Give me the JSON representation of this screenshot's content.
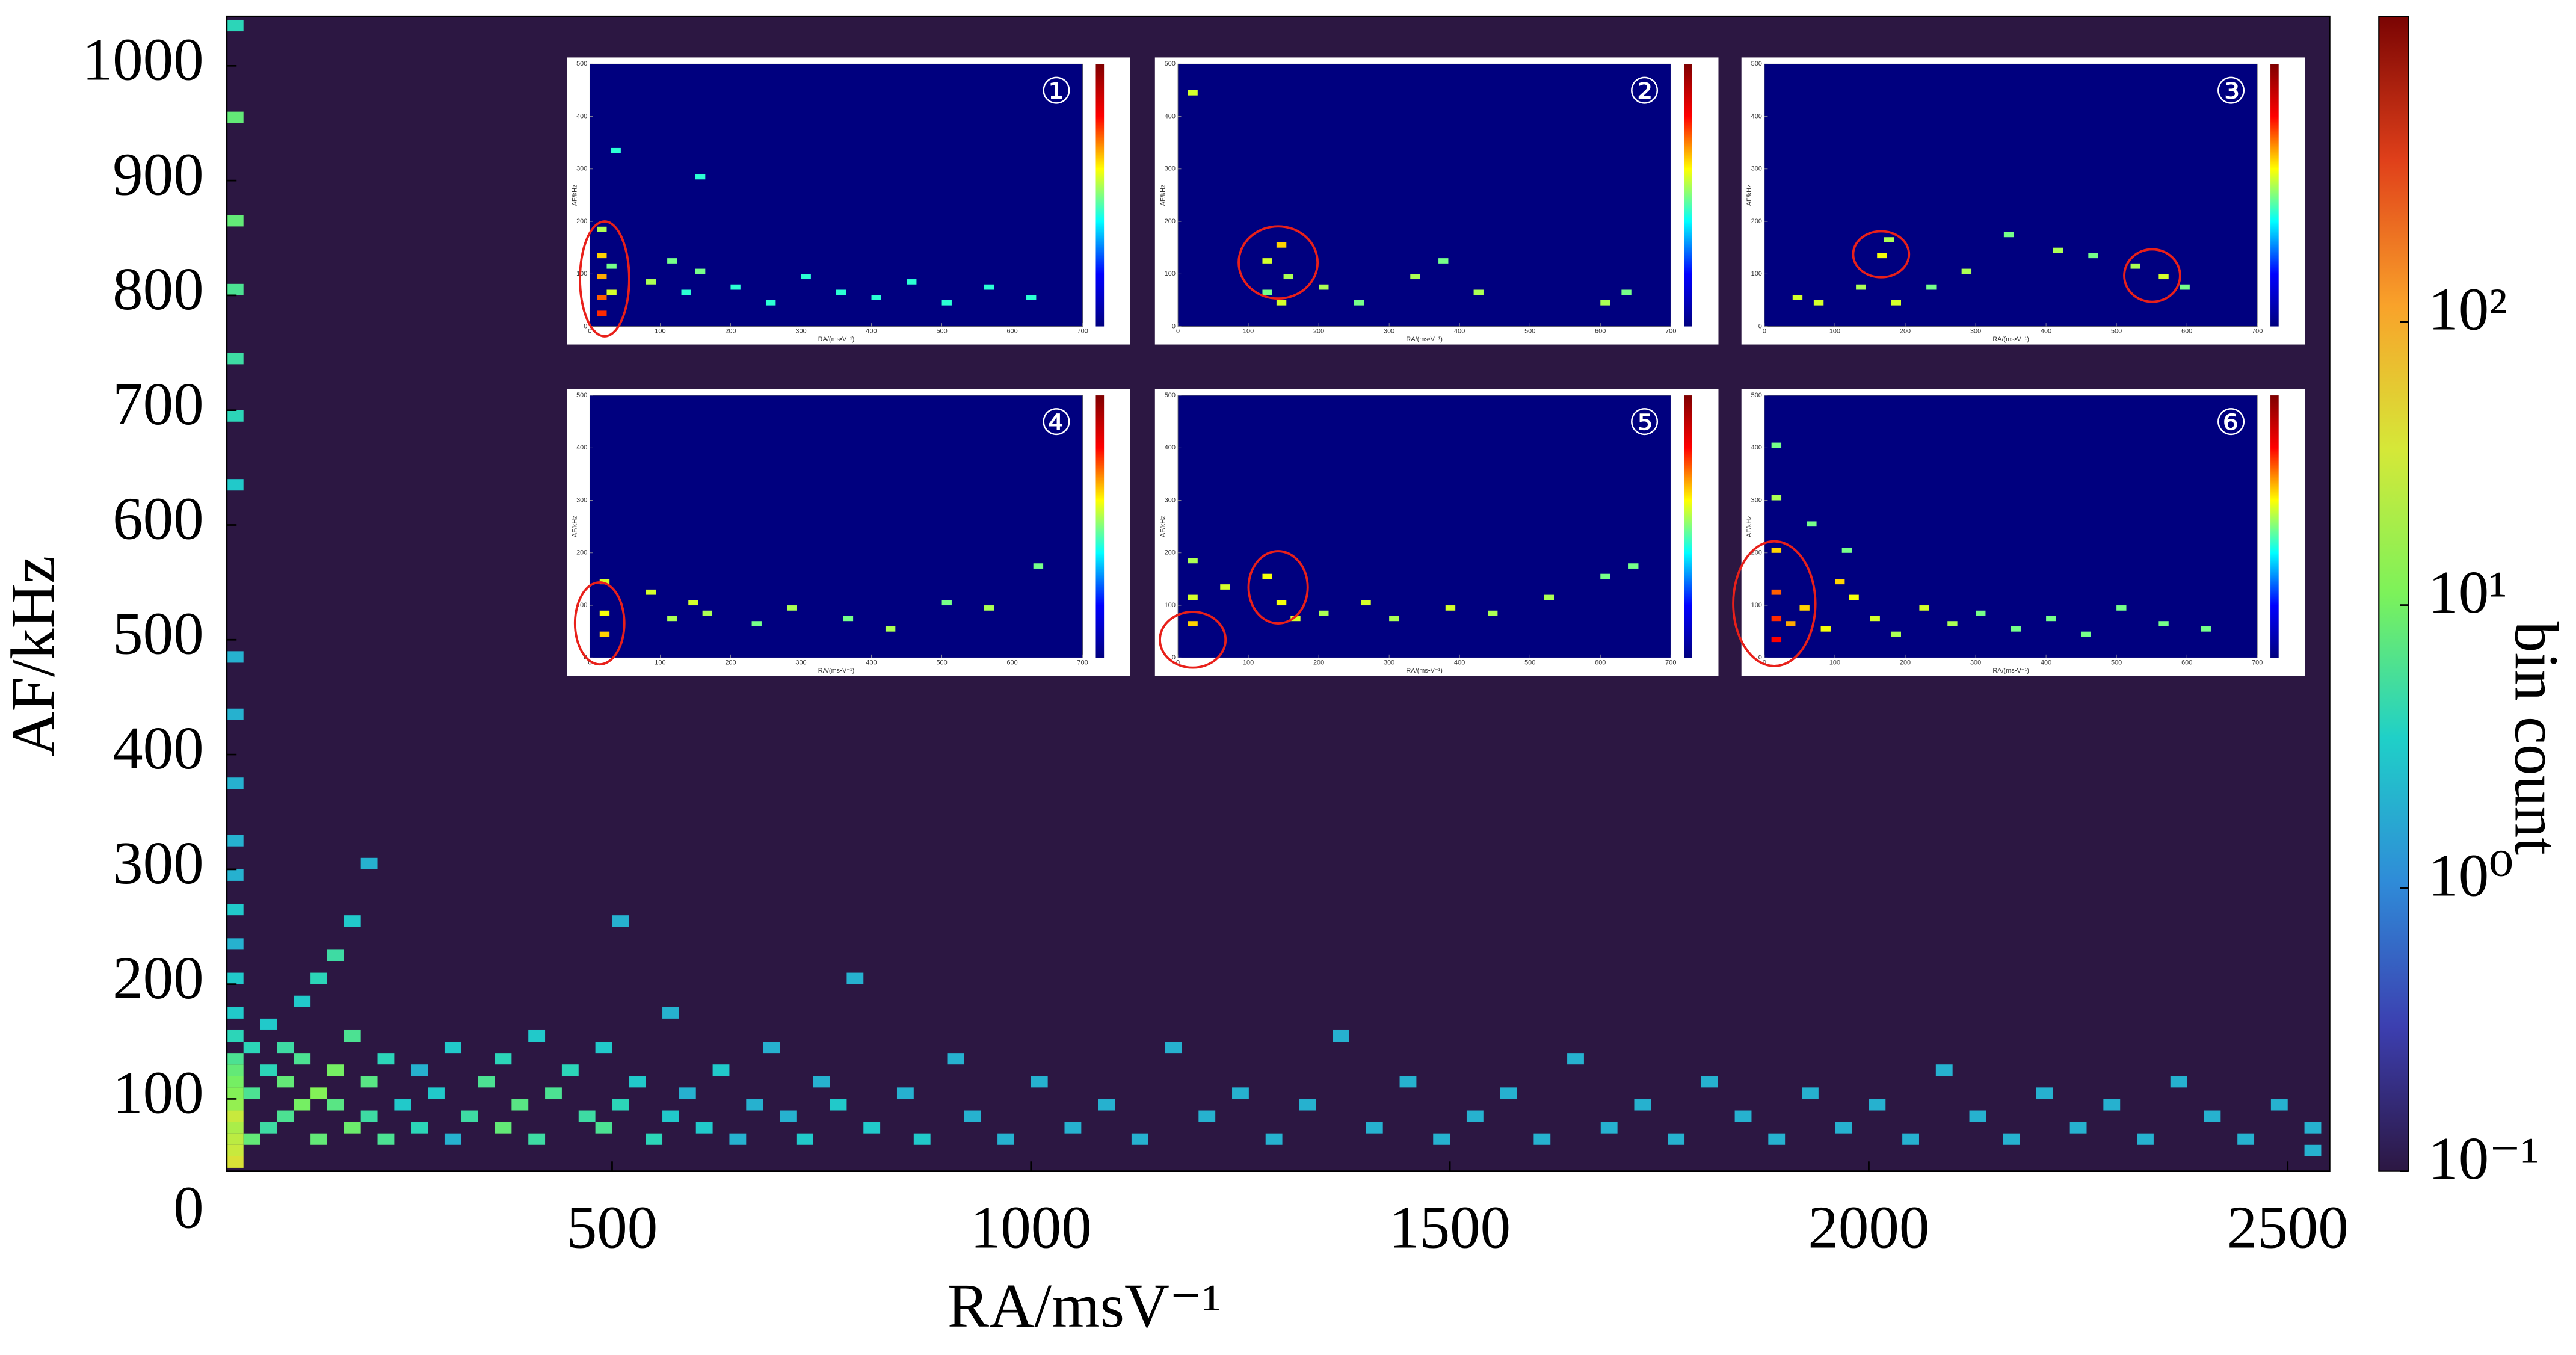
{
  "chart_data": {
    "type": "heatmap",
    "xlabel": "RA/msV⁻¹",
    "ylabel": "AF/kHz",
    "xlim": [
      40,
      2550
    ],
    "ylim": [
      37,
      1043
    ],
    "xticks": [
      500,
      1000,
      1500,
      2000,
      2500
    ],
    "yticks": [
      0,
      100,
      200,
      300,
      400,
      500,
      600,
      700,
      800,
      900,
      1000
    ],
    "bin_width": [
      20,
      10
    ],
    "colormap": [
      "#2c1742",
      "#3c3fb0",
      "#2f8bd8",
      "#1fd0c8",
      "#7cf25a",
      "#d5e838",
      "#f9a22a",
      "#e0401a",
      "#7a0403"
    ],
    "log_color": true,
    "clim": [
      0.1,
      1200
    ],
    "clabel": "bin count",
    "cticks": [
      {
        "value": 0.1,
        "label": "10⁻¹"
      },
      {
        "value": 1,
        "label": "10⁰"
      },
      {
        "value": 10,
        "label": "10¹"
      },
      {
        "value": 100,
        "label": "10²"
      }
    ],
    "cells": [
      [
        40,
        40,
        40
      ],
      [
        40,
        50,
        30
      ],
      [
        40,
        60,
        25
      ],
      [
        40,
        70,
        20
      ],
      [
        40,
        80,
        30
      ],
      [
        40,
        90,
        15
      ],
      [
        40,
        100,
        12
      ],
      [
        40,
        110,
        10
      ],
      [
        40,
        120,
        8
      ],
      [
        40,
        130,
        6
      ],
      [
        40,
        150,
        4
      ],
      [
        40,
        170,
        3
      ],
      [
        40,
        200,
        3
      ],
      [
        40,
        230,
        2
      ],
      [
        40,
        260,
        3
      ],
      [
        40,
        290,
        2
      ],
      [
        40,
        320,
        2
      ],
      [
        40,
        370,
        2
      ],
      [
        40,
        430,
        2
      ],
      [
        40,
        480,
        2
      ],
      [
        40,
        630,
        3
      ],
      [
        40,
        690,
        4
      ],
      [
        40,
        740,
        5
      ],
      [
        40,
        800,
        6
      ],
      [
        40,
        860,
        8
      ],
      [
        40,
        950,
        8
      ],
      [
        40,
        1030,
        4
      ],
      [
        60,
        60,
        8
      ],
      [
        60,
        100,
        6
      ],
      [
        60,
        140,
        4
      ],
      [
        80,
        70,
        5
      ],
      [
        80,
        120,
        4
      ],
      [
        80,
        160,
        3
      ],
      [
        100,
        80,
        6
      ],
      [
        100,
        110,
        8
      ],
      [
        100,
        140,
        5
      ],
      [
        120,
        90,
        10
      ],
      [
        120,
        130,
        6
      ],
      [
        120,
        180,
        3
      ],
      [
        140,
        100,
        12
      ],
      [
        140,
        60,
        8
      ],
      [
        140,
        200,
        4
      ],
      [
        160,
        120,
        10
      ],
      [
        160,
        90,
        7
      ],
      [
        160,
        220,
        5
      ],
      [
        180,
        70,
        9
      ],
      [
        180,
        150,
        6
      ],
      [
        180,
        250,
        3
      ],
      [
        200,
        110,
        7
      ],
      [
        200,
        80,
        5
      ],
      [
        200,
        300,
        2
      ],
      [
        220,
        130,
        4
      ],
      [
        220,
        60,
        6
      ],
      [
        240,
        90,
        3
      ],
      [
        260,
        70,
        4
      ],
      [
        260,
        120,
        2
      ],
      [
        280,
        100,
        3
      ],
      [
        300,
        60,
        2
      ],
      [
        300,
        140,
        3
      ],
      [
        320,
        80,
        5
      ],
      [
        340,
        110,
        6
      ],
      [
        360,
        70,
        8
      ],
      [
        360,
        130,
        4
      ],
      [
        380,
        90,
        7
      ],
      [
        400,
        60,
        5
      ],
      [
        400,
        150,
        3
      ],
      [
        420,
        100,
        6
      ],
      [
        440,
        120,
        4
      ],
      [
        460,
        80,
        5
      ],
      [
        480,
        70,
        6
      ],
      [
        480,
        140,
        3
      ],
      [
        500,
        90,
        4
      ],
      [
        500,
        250,
        2
      ],
      [
        520,
        110,
        3
      ],
      [
        540,
        60,
        4
      ],
      [
        560,
        80,
        3
      ],
      [
        560,
        170,
        2
      ],
      [
        580,
        100,
        2
      ],
      [
        600,
        70,
        3
      ],
      [
        620,
        120,
        3
      ],
      [
        640,
        60,
        2
      ],
      [
        660,
        90,
        2
      ],
      [
        680,
        140,
        2
      ],
      [
        700,
        80,
        2
      ],
      [
        720,
        60,
        3
      ],
      [
        740,
        110,
        2
      ],
      [
        760,
        90,
        3
      ],
      [
        780,
        200,
        2
      ],
      [
        800,
        70,
        3
      ],
      [
        840,
        100,
        2
      ],
      [
        860,
        60,
        3
      ],
      [
        900,
        130,
        2
      ],
      [
        920,
        80,
        2
      ],
      [
        960,
        60,
        2
      ],
      [
        1000,
        110,
        2
      ],
      [
        1040,
        70,
        2
      ],
      [
        1080,
        90,
        2
      ],
      [
        1120,
        60,
        2
      ],
      [
        1160,
        140,
        2
      ],
      [
        1200,
        80,
        2
      ],
      [
        1240,
        100,
        2
      ],
      [
        1280,
        60,
        2
      ],
      [
        1320,
        90,
        2
      ],
      [
        1360,
        150,
        2
      ],
      [
        1400,
        70,
        2
      ],
      [
        1440,
        110,
        2
      ],
      [
        1480,
        60,
        2
      ],
      [
        1520,
        80,
        2
      ],
      [
        1560,
        100,
        2
      ],
      [
        1600,
        60,
        2
      ],
      [
        1640,
        130,
        2
      ],
      [
        1680,
        70,
        2
      ],
      [
        1720,
        90,
        2
      ],
      [
        1760,
        60,
        2
      ],
      [
        1800,
        110,
        2
      ],
      [
        1840,
        80,
        2
      ],
      [
        1880,
        60,
        2
      ],
      [
        1920,
        100,
        2
      ],
      [
        1960,
        70,
        2
      ],
      [
        2000,
        90,
        2
      ],
      [
        2040,
        60,
        2
      ],
      [
        2080,
        120,
        2
      ],
      [
        2120,
        80,
        2
      ],
      [
        2160,
        60,
        2
      ],
      [
        2200,
        100,
        2
      ],
      [
        2240,
        70,
        2
      ],
      [
        2280,
        90,
        2
      ],
      [
        2320,
        60,
        2
      ],
      [
        2360,
        110,
        2
      ],
      [
        2400,
        80,
        2
      ],
      [
        2440,
        60,
        2
      ],
      [
        2480,
        90,
        2
      ],
      [
        2520,
        70,
        2
      ],
      [
        2520,
        50,
        2
      ]
    ],
    "insets": {
      "xlabel": "RA/(ms•V⁻¹)",
      "ylabel": "AF/kHz",
      "xlim": [
        0,
        700
      ],
      "ylim": [
        0,
        500
      ],
      "xticks": [
        0,
        100,
        200,
        300,
        400,
        500,
        600,
        700
      ],
      "yticks": [
        0,
        100,
        200,
        300,
        400,
        500
      ],
      "bin_width": [
        14,
        10
      ],
      "colormap": [
        "#00007f",
        "#0000ff",
        "#00ffff",
        "#ffff00",
        "#ff0000",
        "#7f0000"
      ],
      "clim": [
        0.1,
        100
      ],
      "panels": [
        {
          "label": "①",
          "cells": [
            [
              10,
              20,
              20
            ],
            [
              10,
              50,
              15
            ],
            [
              10,
              90,
              10
            ],
            [
              10,
              130,
              8
            ],
            [
              10,
              180,
              4
            ],
            [
              24,
              60,
              5
            ],
            [
              24,
              110,
              3
            ],
            [
              80,
              80,
              4
            ],
            [
              110,
              120,
              3
            ],
            [
              130,
              60,
              2
            ],
            [
              150,
              100,
              3
            ],
            [
              200,
              70,
              2
            ],
            [
              250,
              40,
              2
            ],
            [
              300,
              90,
              2
            ],
            [
              350,
              60,
              2
            ],
            [
              400,
              50,
              2
            ],
            [
              450,
              80,
              2
            ],
            [
              500,
              40,
              2
            ],
            [
              560,
              70,
              2
            ],
            [
              620,
              50,
              2
            ],
            [
              30,
              330,
              2
            ],
            [
              150,
              280,
              2
            ]
          ]
        },
        {
          "label": "②",
          "cells": [
            [
              14,
              440,
              5
            ],
            [
              120,
              120,
              5
            ],
            [
              140,
              150,
              8
            ],
            [
              150,
              90,
              4
            ],
            [
              140,
              40,
              5
            ],
            [
              120,
              60,
              3
            ],
            [
              200,
              70,
              4
            ],
            [
              250,
              40,
              3
            ],
            [
              330,
              90,
              4
            ],
            [
              370,
              120,
              3
            ],
            [
              420,
              60,
              4
            ],
            [
              600,
              40,
              4
            ],
            [
              630,
              60,
              3
            ]
          ]
        },
        {
          "label": "③",
          "cells": [
            [
              40,
              50,
              5
            ],
            [
              70,
              40,
              5
            ],
            [
              130,
              70,
              4
            ],
            [
              160,
              130,
              6
            ],
            [
              170,
              160,
              4
            ],
            [
              180,
              40,
              5
            ],
            [
              230,
              70,
              3
            ],
            [
              280,
              100,
              4
            ],
            [
              340,
              170,
              3
            ],
            [
              410,
              140,
              4
            ],
            [
              460,
              130,
              3
            ],
            [
              520,
              110,
              4
            ],
            [
              560,
              90,
              5
            ],
            [
              590,
              70,
              3
            ]
          ]
        },
        {
          "label": "④",
          "cells": [
            [
              14,
              40,
              8
            ],
            [
              14,
              80,
              6
            ],
            [
              14,
              140,
              5
            ],
            [
              80,
              120,
              5
            ],
            [
              110,
              70,
              4
            ],
            [
              140,
              100,
              5
            ],
            [
              160,
              80,
              4
            ],
            [
              230,
              60,
              3
            ],
            [
              280,
              90,
              4
            ],
            [
              360,
              70,
              3
            ],
            [
              420,
              50,
              4
            ],
            [
              500,
              100,
              3
            ],
            [
              560,
              90,
              4
            ],
            [
              630,
              170,
              3
            ]
          ]
        },
        {
          "label": "⑤",
          "cells": [
            [
              14,
              60,
              8
            ],
            [
              14,
              110,
              5
            ],
            [
              14,
              180,
              4
            ],
            [
              60,
              130,
              5
            ],
            [
              120,
              150,
              6
            ],
            [
              140,
              100,
              6
            ],
            [
              160,
              70,
              5
            ],
            [
              200,
              80,
              4
            ],
            [
              260,
              100,
              5
            ],
            [
              300,
              70,
              4
            ],
            [
              380,
              90,
              5
            ],
            [
              440,
              80,
              4
            ],
            [
              520,
              110,
              4
            ],
            [
              600,
              150,
              3
            ],
            [
              640,
              170,
              3
            ]
          ]
        },
        {
          "label": "⑥",
          "cells": [
            [
              10,
              30,
              25
            ],
            [
              10,
              70,
              20
            ],
            [
              10,
              120,
              15
            ],
            [
              10,
              200,
              8
            ],
            [
              10,
              300,
              4
            ],
            [
              10,
              400,
              3
            ],
            [
              30,
              60,
              10
            ],
            [
              50,
              90,
              8
            ],
            [
              80,
              50,
              6
            ],
            [
              100,
              140,
              8
            ],
            [
              120,
              110,
              6
            ],
            [
              150,
              70,
              5
            ],
            [
              180,
              40,
              4
            ],
            [
              220,
              90,
              5
            ],
            [
              260,
              60,
              4
            ],
            [
              300,
              80,
              3
            ],
            [
              350,
              50,
              3
            ],
            [
              400,
              70,
              3
            ],
            [
              450,
              40,
              3
            ],
            [
              500,
              90,
              3
            ],
            [
              560,
              60,
              3
            ],
            [
              620,
              50,
              3
            ],
            [
              60,
              250,
              3
            ],
            [
              110,
              200,
              3
            ]
          ]
        }
      ]
    }
  }
}
